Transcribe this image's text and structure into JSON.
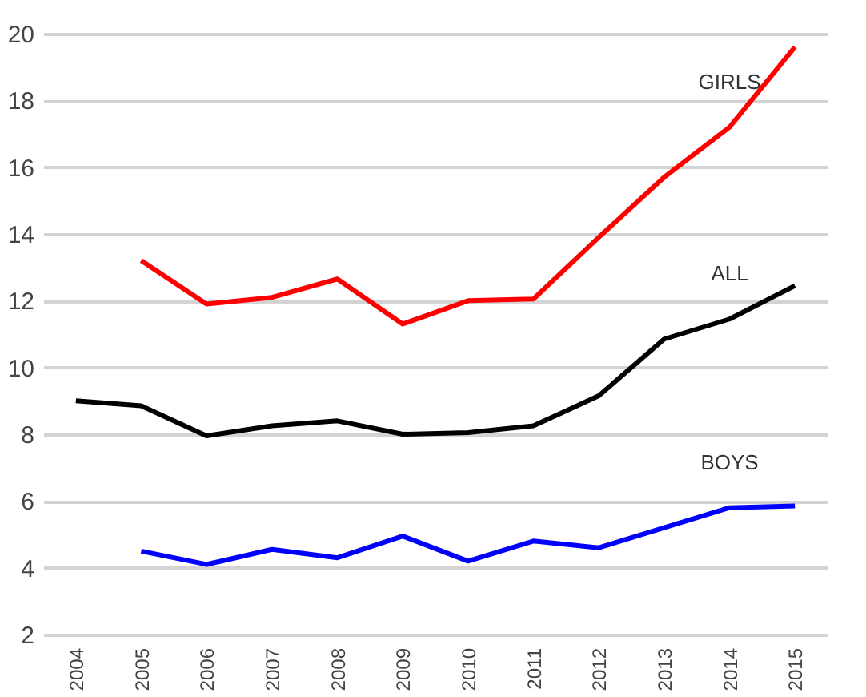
{
  "chart_data": {
    "type": "line",
    "categories": [
      "2004",
      "2005",
      "2006",
      "2007",
      "2008",
      "2009",
      "2010",
      "2011",
      "2012",
      "2013",
      "2014",
      "2015"
    ],
    "series": [
      {
        "name": "GIRLS",
        "color": "#ff0000",
        "values": [
          null,
          13.2,
          11.9,
          12.1,
          12.65,
          11.3,
          12.0,
          12.05,
          13.9,
          15.7,
          17.2,
          19.6
        ]
      },
      {
        "name": "ALL",
        "color": "#000000",
        "values": [
          9.0,
          8.85,
          7.95,
          8.25,
          8.4,
          8.0,
          8.05,
          8.25,
          9.15,
          10.85,
          11.45,
          12.45
        ]
      },
      {
        "name": "BOYS",
        "color": "#0000ff",
        "values": [
          null,
          4.5,
          4.1,
          4.55,
          4.3,
          4.95,
          4.2,
          4.8,
          4.6,
          5.2,
          5.8,
          5.85
        ]
      }
    ],
    "ylim": [
      2,
      20
    ],
    "yticks": [
      2,
      4,
      6,
      8,
      10,
      12,
      14,
      16,
      18,
      20
    ],
    "grid": "y",
    "legend": false,
    "marker": "none",
    "line_style": "solid"
  }
}
